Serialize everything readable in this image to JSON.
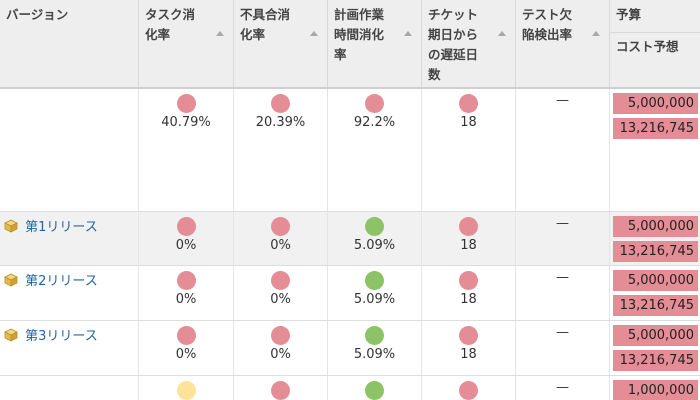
{
  "header": {
    "version": "バージョン",
    "task_rate_l1": "タスク消",
    "task_rate_l2": "化率",
    "bug_rate_l1": "不具合消",
    "bug_rate_l2": "化率",
    "plan_hours_l1": "計画作業",
    "plan_hours_l2": "時間消化",
    "plan_hours_l3": "率",
    "ticket_delay_l1": "チケット",
    "ticket_delay_l2": "期日から",
    "ticket_delay_l3": "の遅延日",
    "ticket_delay_l4": "数",
    "test_l1": "テスト欠",
    "test_l2": "陥検出率",
    "budget": "予算",
    "cost_forecast": "コスト予想"
  },
  "colors": {
    "red": "#e58d96",
    "green": "#8cc367",
    "yellow": "#fde39a",
    "link": "#2262a8"
  },
  "rows": [
    {
      "version": "",
      "task_status": "red",
      "task_rate": "40.79%",
      "bug_status": "red",
      "bug_rate": "20.39%",
      "plan_status": "red",
      "plan_rate": "92.2%",
      "delay_status": "red",
      "delay_days": "18",
      "test_rate": "—",
      "budget": "5,000,000",
      "cost_forecast": "13,216,745"
    },
    {
      "version": "第1リリース",
      "task_status": "red",
      "task_rate": "0%",
      "bug_status": "red",
      "bug_rate": "0%",
      "plan_status": "green",
      "plan_rate": "5.09%",
      "delay_status": "red",
      "delay_days": "18",
      "test_rate": "—",
      "budget": "5,000,000",
      "cost_forecast": "13,216,745"
    },
    {
      "version": "第2リリース",
      "task_status": "red",
      "task_rate": "0%",
      "bug_status": "red",
      "bug_rate": "0%",
      "plan_status": "green",
      "plan_rate": "5.09%",
      "delay_status": "red",
      "delay_days": "18",
      "test_rate": "—",
      "budget": "5,000,000",
      "cost_forecast": "13,216,745"
    },
    {
      "version": "第3リリース",
      "task_status": "red",
      "task_rate": "0%",
      "bug_status": "red",
      "bug_rate": "0%",
      "plan_status": "green",
      "plan_rate": "5.09%",
      "delay_status": "red",
      "delay_days": "18",
      "test_rate": "—",
      "budget": "5,000,000",
      "cost_forecast": "13,216,745"
    },
    {
      "version": "",
      "task_status": "yellow",
      "bug_status": "red",
      "plan_status": "green",
      "delay_status": "red",
      "test_rate": "—",
      "budget": "1,000,000"
    }
  ]
}
